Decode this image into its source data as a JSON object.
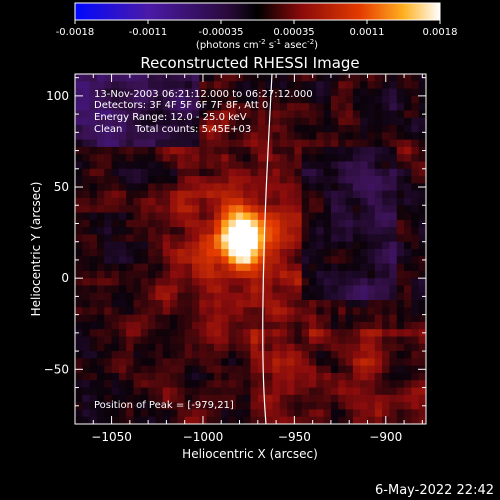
{
  "colorbar": {
    "ticks": [
      "-0.0018",
      "-0.0011",
      "-0.00035",
      "0.00035",
      "0.0011",
      "0.0018"
    ],
    "unit_main": "(photons cm",
    "unit_exp1": "-2",
    "unit_s": " s",
    "unit_exp2": "-1",
    "unit_asec": " asec",
    "unit_close": ")"
  },
  "chart_data": {
    "type": "heatmap",
    "title": "Reconstructed RHESSI Image",
    "xlabel": "Heliocentric X (arcsec)",
    "ylabel": "Heliocentric Y (arcsec)",
    "xlim": [
      -1070,
      -878
    ],
    "ylim": [
      -80,
      112
    ],
    "xticks": [
      -1050,
      -1000,
      -950,
      -900
    ],
    "yticks": [
      -50,
      0,
      50,
      100
    ],
    "xtick_labels": [
      "−1050",
      "−1000",
      "−950",
      "−900"
    ],
    "ytick_labels": [
      "−50",
      "0",
      "50",
      "100"
    ],
    "colorscale_range": [
      -0.0018,
      0.0018
    ],
    "peak": {
      "x": -979,
      "y": 21
    },
    "annotations": [
      "13-Nov-2003 06:21:12.000 to 06:27:12.000",
      "Detectors: 3F 4F 5F 6F 7F 8F, Att 0",
      "Energy Range: 12.0 - 25.0 keV",
      "Clean    Total counts: 5.45E+03"
    ],
    "peak_label": "Position of Peak = [-979,21]",
    "limb": "solar limb contour"
  },
  "footer": {
    "date": "6-May-2022 22:42"
  }
}
